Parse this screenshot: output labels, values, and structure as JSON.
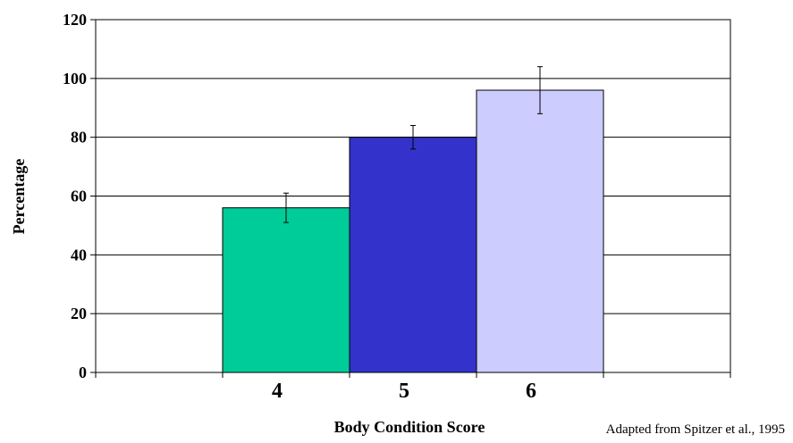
{
  "chart_data": {
    "type": "bar",
    "categories": [
      "4",
      "5",
      "6"
    ],
    "values": [
      56,
      80,
      96
    ],
    "error_low": [
      51,
      76,
      88
    ],
    "error_high": [
      61,
      84,
      104
    ],
    "colors": [
      "#00cc99",
      "#3333cc",
      "#ccccff"
    ],
    "xlabel": "Body Condition Score",
    "ylabel": "Percentage",
    "ylim": [
      0,
      120
    ],
    "yticks": [
      "0",
      "20",
      "40",
      "60",
      "80",
      "100",
      "120"
    ],
    "grid": true,
    "legend": "none"
  },
  "source_note": "Adapted from Spitzer et al., 1995"
}
